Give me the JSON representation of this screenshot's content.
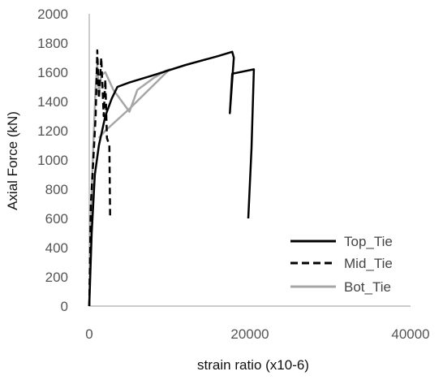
{
  "chart_data": {
    "type": "line",
    "xlabel": "strain ratio (x10-6)",
    "ylabel": "Axial Force (kN)",
    "xlim": [
      0,
      40000
    ],
    "ylim": [
      0,
      2000
    ],
    "x_ticks": [
      0,
      20000,
      40000
    ],
    "y_ticks": [
      0,
      200,
      400,
      600,
      800,
      1000,
      1200,
      1400,
      1600,
      1800,
      2000
    ],
    "x_tick_labels": [
      "0",
      "20000",
      "40000"
    ],
    "y_tick_labels": [
      "0",
      "200",
      "400",
      "600",
      "800",
      "1000",
      "1200",
      "1400",
      "1600",
      "1800",
      "2000"
    ],
    "grid": false,
    "legend_position": "bottom-right",
    "series": [
      {
        "name": "Top_Tie",
        "color": "#000000",
        "dash": "solid",
        "points": [
          [
            0,
            0
          ],
          [
            300,
            500
          ],
          [
            700,
            900
          ],
          [
            1200,
            1100
          ],
          [
            2000,
            1300
          ],
          [
            2800,
            1420
          ],
          [
            3500,
            1500
          ],
          [
            5000,
            1530
          ],
          [
            8000,
            1580
          ],
          [
            12000,
            1650
          ],
          [
            16000,
            1710
          ],
          [
            17800,
            1740
          ],
          [
            18000,
            1700
          ],
          [
            17500,
            1320
          ],
          [
            17800,
            1590
          ],
          [
            20500,
            1620
          ],
          [
            20200,
            1080
          ],
          [
            19800,
            600
          ]
        ]
      },
      {
        "name": "Mid_Tie",
        "color": "#000000",
        "dash": "dashed",
        "points": [
          [
            0,
            0
          ],
          [
            200,
            700
          ],
          [
            500,
            1000
          ],
          [
            800,
            1300
          ],
          [
            1000,
            1750
          ],
          [
            1200,
            1420
          ],
          [
            1500,
            1700
          ],
          [
            1800,
            1300
          ],
          [
            2000,
            1550
          ],
          [
            2200,
            1150
          ],
          [
            2500,
            1100
          ],
          [
            2600,
            620
          ]
        ]
      },
      {
        "name": "Bot_Tie",
        "color": "#a6a6a6",
        "dash": "solid",
        "points": [
          [
            0,
            0
          ],
          [
            200,
            600
          ],
          [
            500,
            1100
          ],
          [
            800,
            1500
          ],
          [
            1000,
            1650
          ],
          [
            1200,
            1450
          ],
          [
            1500,
            1580
          ],
          [
            2000,
            1600
          ],
          [
            3000,
            1480
          ],
          [
            5000,
            1330
          ],
          [
            6000,
            1480
          ],
          [
            8000,
            1560
          ],
          [
            9500,
            1610
          ],
          [
            10000,
            1620
          ],
          [
            5000,
            1350
          ],
          [
            2000,
            1200
          ],
          [
            1200,
            1150
          ]
        ]
      }
    ]
  }
}
